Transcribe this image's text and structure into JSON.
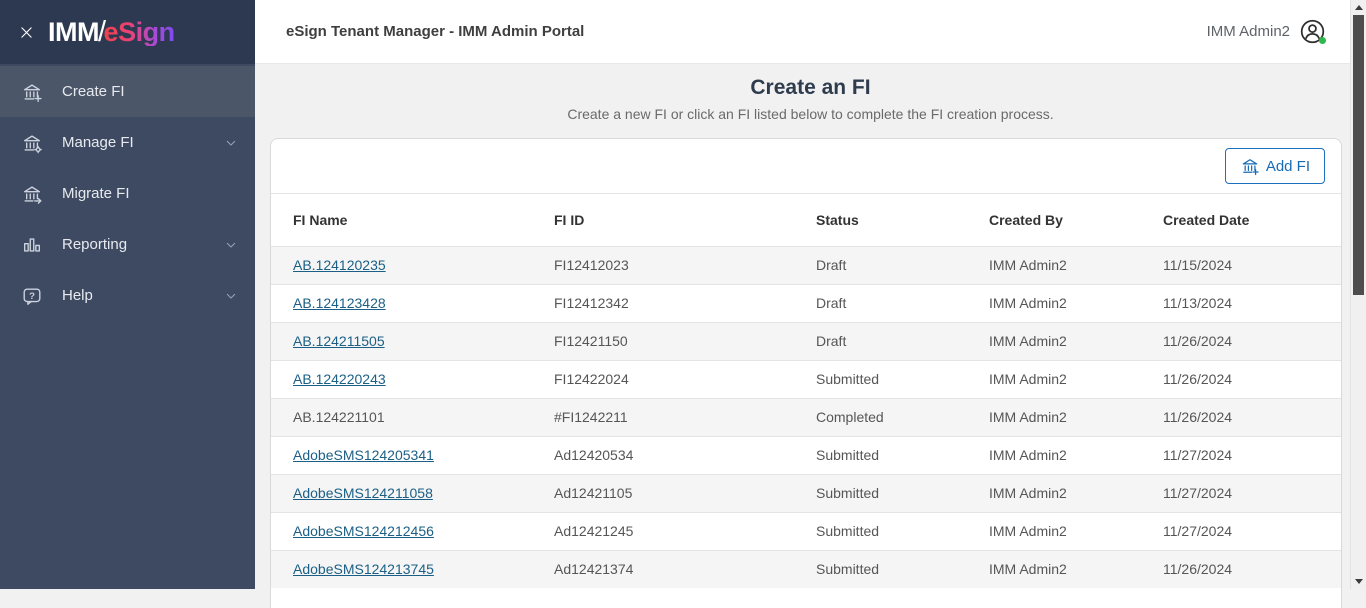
{
  "sidebar": {
    "logo": {
      "prefix": "IMM",
      "separator": "/",
      "suffix": "eSign"
    },
    "close_icon": "x-icon",
    "items": [
      {
        "label": "Create FI",
        "icon": "bank-plus-icon",
        "active": true,
        "chevron": false
      },
      {
        "label": "Manage FI",
        "icon": "bank-gear-icon",
        "active": false,
        "chevron": true
      },
      {
        "label": "Migrate FI",
        "icon": "bank-arrow-icon",
        "active": false,
        "chevron": false
      },
      {
        "label": "Reporting",
        "icon": "bar-chart-icon",
        "active": false,
        "chevron": true
      },
      {
        "label": "Help",
        "icon": "help-bubble-icon",
        "active": false,
        "chevron": true
      }
    ]
  },
  "topbar": {
    "app_title": "eSign Tenant Manager - IMM Admin Portal",
    "username": "IMM Admin2",
    "user_icon": "account-circle-icon"
  },
  "page": {
    "heading": "Create an FI",
    "subheading": "Create a new FI or click an FI listed below to complete the FI creation process."
  },
  "toolbar": {
    "add_button": {
      "label": "Add FI",
      "icon": "bank-plus-icon"
    }
  },
  "table": {
    "columns": [
      "FI Name",
      "FI ID",
      "Status",
      "Created By",
      "Created Date"
    ],
    "rows": [
      {
        "fi_name": "AB.124120235",
        "fi_id": "FI12412023",
        "status": "Draft",
        "created_by": "IMM Admin2",
        "created_date": "11/15/2024",
        "is_link": true
      },
      {
        "fi_name": "AB.124123428",
        "fi_id": "FI12412342",
        "status": "Draft",
        "created_by": "IMM Admin2",
        "created_date": "11/13/2024",
        "is_link": true
      },
      {
        "fi_name": "AB.124211505",
        "fi_id": "FI12421150",
        "status": "Draft",
        "created_by": "IMM Admin2",
        "created_date": "11/26/2024",
        "is_link": true
      },
      {
        "fi_name": "AB.124220243",
        "fi_id": "FI12422024",
        "status": "Submitted",
        "created_by": "IMM Admin2",
        "created_date": "11/26/2024",
        "is_link": true
      },
      {
        "fi_name": "AB.124221101",
        "fi_id": "#FI1242211",
        "status": "Completed",
        "created_by": "IMM Admin2",
        "created_date": "11/26/2024",
        "is_link": false
      },
      {
        "fi_name": "AdobeSMS124205341",
        "fi_id": "Ad12420534",
        "status": "Submitted",
        "created_by": "IMM Admin2",
        "created_date": "11/27/2024",
        "is_link": true
      },
      {
        "fi_name": "AdobeSMS124211058",
        "fi_id": "Ad12421105",
        "status": "Submitted",
        "created_by": "IMM Admin2",
        "created_date": "11/27/2024",
        "is_link": true
      },
      {
        "fi_name": "AdobeSMS124212456",
        "fi_id": "Ad12421245",
        "status": "Submitted",
        "created_by": "IMM Admin2",
        "created_date": "11/27/2024",
        "is_link": true
      },
      {
        "fi_name": "AdobeSMS124213745",
        "fi_id": "Ad12421374",
        "status": "Submitted",
        "created_by": "IMM Admin2",
        "created_date": "11/26/2024",
        "is_link": true
      }
    ]
  },
  "colors": {
    "accent_blue": "#1d6fc0",
    "link": "#1b5f86",
    "sidebar_bg": "#3e4a62",
    "sidebar_active_bg": "#4b5669",
    "logo_bar_bg": "#2d3950",
    "logo_gradient_start": "#f2414a",
    "logo_gradient_end": "#7c4bf0",
    "status_green": "#2db84b",
    "row_alt_bg": "#f5f5f5"
  }
}
